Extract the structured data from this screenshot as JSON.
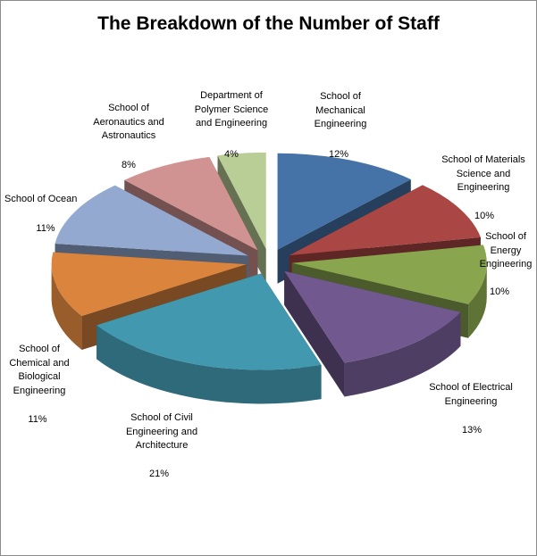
{
  "chart_data": {
    "type": "pie",
    "style": "3d-exploded",
    "title": "The Breakdown of the Number of Staff",
    "slices": [
      {
        "label": "School of\nMechanical\nEngineering",
        "value": 12,
        "pct": "12%",
        "color": "#4572A7"
      },
      {
        "label": "School of Materials\nScience and\nEngineering",
        "value": 10,
        "pct": "10%",
        "color": "#AA4643"
      },
      {
        "label": "School of\nEnergy\nEngineering",
        "value": 10,
        "pct": "10%",
        "color": "#89A54E"
      },
      {
        "label": "School of Electrical\nEngineering",
        "value": 13,
        "pct": "13%",
        "color": "#71588F"
      },
      {
        "label": "School of Civil\nEngineering and\nArchitecture",
        "value": 21,
        "pct": "21%",
        "color": "#4198AF"
      },
      {
        "label": "School of\nChemical and\nBiological\nEngineering",
        "value": 11,
        "pct": "11%",
        "color": "#DB843D"
      },
      {
        "label": "School of Ocean",
        "value": 11,
        "pct": "11%",
        "color": "#93A9CF"
      },
      {
        "label": "School of\nAeronautics and\nAstronautics",
        "value": 8,
        "pct": "8%",
        "color": "#D19392"
      },
      {
        "label": "Department of\nPolymer Science\nand Engineering",
        "value": 4,
        "pct": "4%",
        "color": "#B9CD96"
      }
    ]
  }
}
